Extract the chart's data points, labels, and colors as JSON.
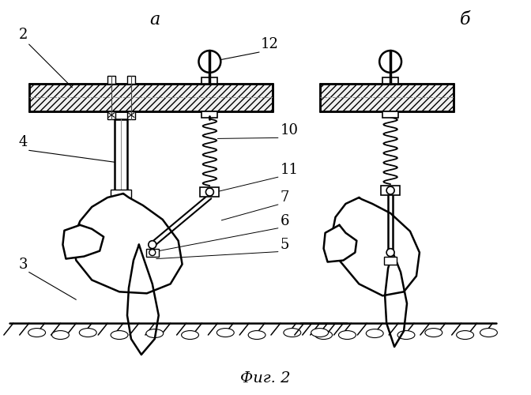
{
  "title": "Фиг. 2",
  "label_a": "а",
  "label_b": "б",
  "bg_color": "#ffffff",
  "line_color": "#000000",
  "lw": 1.2,
  "lw_thick": 1.8
}
